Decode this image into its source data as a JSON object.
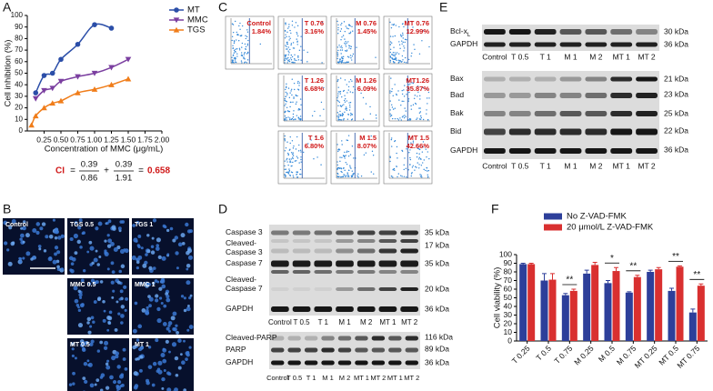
{
  "panel_labels": [
    "A",
    "B",
    "C",
    "D",
    "E",
    "F"
  ],
  "chart_data": [
    {
      "type": "line",
      "x_label": "Concentration of MMC (μg/mL)",
      "y_label": "Cell inhibition (%)",
      "xlim": [
        0,
        2
      ],
      "xticks": [
        0.25,
        {
          "value": 0.5,
          "label": "0.50"
        },
        0.75,
        {
          "value": 1,
          "label": "1.00"
        },
        1.25,
        {
          "value": 1.5,
          "label": "1.50"
        },
        1.75,
        {
          "value": 2,
          "label": "2.00"
        }
      ],
      "ylim": [
        0,
        100
      ],
      "yticks": [
        0,
        10,
        20,
        30,
        40,
        50,
        60,
        70,
        80,
        90,
        100
      ],
      "legend": "top-right",
      "series": [
        {
          "name": "MT",
          "color": "#2b4ea8",
          "marker": "circle",
          "x": [
            0.125,
            0.25,
            0.375,
            0.5,
            0.75,
            1.0,
            1.25
          ],
          "values": [
            33,
            48,
            50,
            62,
            75,
            92,
            89
          ]
        },
        {
          "name": "MMC",
          "color": "#7b3fa0",
          "marker": "triangle-down",
          "x": [
            0.125,
            0.25,
            0.375,
            0.5,
            0.75,
            1.0,
            1.25,
            1.5
          ],
          "values": [
            28,
            35,
            37,
            43,
            47,
            50,
            55,
            62
          ]
        },
        {
          "name": "TGS",
          "color": "#f07d1a",
          "marker": "triangle-up",
          "x": [
            0.0625,
            0.125,
            0.25,
            0.375,
            0.5,
            0.75,
            1.0,
            1.25,
            1.5
          ],
          "values": [
            5,
            13,
            20,
            24,
            26,
            33,
            36,
            40,
            45
          ]
        }
      ]
    },
    {
      "type": "bar",
      "y_label": "Cell viability (%)",
      "categories": [
        "T 0.25",
        "T 0.5",
        "T 0.75",
        "M 0.25",
        "M 0.5",
        "M 0.75",
        "MT 0.25",
        "MT 0.5",
        "MT 0.75"
      ],
      "ylim": [
        0,
        100
      ],
      "yticks": [
        0,
        10,
        20,
        30,
        40,
        50,
        60,
        70,
        80,
        90,
        100
      ],
      "legend": "top",
      "series": [
        {
          "name": "No Z-VAD-FMK",
          "color": "#2d3f9a",
          "values": [
            89,
            70,
            53,
            78,
            67,
            56,
            80,
            58,
            33
          ],
          "errors": [
            1,
            8,
            2,
            4,
            3,
            1,
            2,
            3,
            4
          ]
        },
        {
          "name": "20 μmol/L Z-VAD-FMK",
          "color": "#d93030",
          "values": [
            89,
            71,
            58,
            88,
            81,
            74,
            83,
            86,
            64
          ],
          "errors": [
            1,
            7,
            2,
            3,
            4,
            2,
            2,
            1,
            2
          ]
        }
      ],
      "significance": [
        null,
        null,
        "**",
        null,
        "*",
        "**",
        null,
        "**",
        "**"
      ]
    }
  ],
  "ci_formula": {
    "lhs": "CI",
    "equals": "=",
    "plus": "+",
    "terms": [
      {
        "numerator": "0.39",
        "denominator": "0.86"
      },
      {
        "numerator": "0.39",
        "denominator": "1.91"
      }
    ],
    "result": "0.658"
  },
  "panel_b": {
    "images": [
      "Control",
      "TGS 0.5",
      "TGS 1",
      "MMC 0.5",
      "MMC 1",
      "MT 0.5",
      "MT 1"
    ]
  },
  "panel_c": {
    "plots": [
      {
        "label": "Control",
        "percent": "1.84%"
      },
      {
        "label": "T 0.76",
        "percent": "3.16%"
      },
      {
        "label": "M 0.76",
        "percent": "1.45%"
      },
      {
        "label": "MT 0.76",
        "percent": "12.99%"
      },
      {
        "label": "T 1.26",
        "percent": "6.68%"
      },
      {
        "label": "M 1.26",
        "percent": "6.09%"
      },
      {
        "label": "MT1.26",
        "percent": "35.87%"
      },
      {
        "label": "T 1.6",
        "percent": "6.80%"
      },
      {
        "label": "M 1.5",
        "percent": "8.07%"
      },
      {
        "label": "MT 1.5",
        "percent": "42.66%"
      }
    ]
  },
  "panel_d": {
    "upper": {
      "rows": [
        {
          "label": [
            "Caspase 3"
          ],
          "kda": "35 kDa"
        },
        {
          "label": [
            "Cleaved-",
            "Caspase 3"
          ],
          "kda": "17 kDa"
        },
        {
          "label": [
            "Caspase 7"
          ],
          "kda": "35 kDa"
        },
        {
          "label": [
            "Cleaved-",
            "Caspase 7"
          ],
          "kda": "20 kDa"
        },
        {
          "label": [
            "GAPDH"
          ],
          "kda": "36 kDa"
        }
      ],
      "lanes": [
        "Control",
        "T 0.5",
        "T 1",
        "M 1",
        "M 2",
        "MT 1",
        "MT 2"
      ]
    },
    "lower": {
      "rows": [
        {
          "label": [
            "Cleaved-PARP"
          ],
          "kda": "116 kDa"
        },
        {
          "label": [
            "PARP"
          ],
          "kda": "89 kDa"
        },
        {
          "label": [
            "GAPDH"
          ],
          "kda": "36 kDa"
        }
      ],
      "lanes": [
        "Control",
        "T 0.5",
        "T 1",
        "M 1",
        "M 2",
        "MT 1",
        "MT 2",
        "MT 1",
        "MT 2"
      ]
    }
  },
  "panel_e": {
    "upper": {
      "rows": [
        {
          "label": [
            "Bcl-x"
          ],
          "subscript": "L",
          "kda": "30 kDa"
        },
        {
          "label": [
            "GAPDH"
          ],
          "kda": "36 kDa"
        }
      ],
      "lanes": [
        "Control",
        "T 0.5",
        "T 1",
        "M 1",
        "M 2",
        "MT 1",
        "MT 2"
      ]
    },
    "lower": {
      "rows": [
        {
          "label": [
            "Bax"
          ],
          "kda": "21 kDa"
        },
        {
          "label": [
            "Bad"
          ],
          "kda": "23 kDa"
        },
        {
          "label": [
            "Bak"
          ],
          "kda": "25 kDa"
        },
        {
          "label": [
            "Bid"
          ],
          "kda": "22 kDa"
        },
        {
          "label": [
            "GAPDH"
          ],
          "kda": "36 kDa"
        }
      ],
      "lanes": [
        "Control",
        "T 0.5",
        "T 1",
        "M 1",
        "M 2",
        "MT 1",
        "MT 2"
      ]
    }
  }
}
